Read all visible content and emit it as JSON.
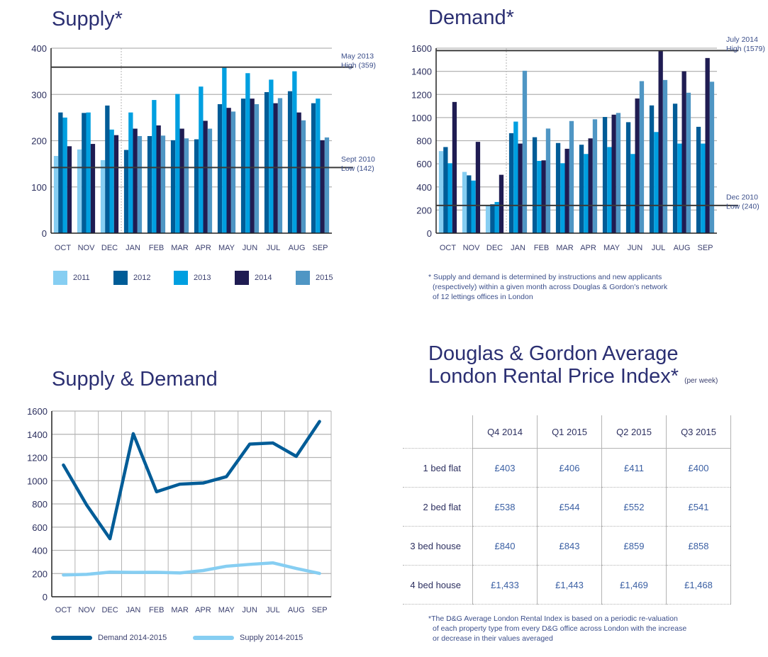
{
  "supply": {
    "title": "Supply*",
    "annotations": {
      "high": [
        "May 2013",
        "High (359)"
      ],
      "low": [
        "Sept 2010",
        "Low (142)"
      ]
    }
  },
  "demand": {
    "title": "Demand*",
    "annotations": {
      "high": [
        "July 2014",
        "High (1579)"
      ],
      "low": [
        "Dec 2010",
        "Low (240)"
      ]
    },
    "footnote": "* Supply and demand is determined by instructions and new applicants (respectively) within a given month across Douglas & Gordon's network of 12 lettings offices in London",
    "footnote_lines": [
      "* Supply and demand is determined by instructions and new applicants",
      "(respectively) within a given month across Douglas & Gordon's network",
      "of 12 lettings offices in London"
    ]
  },
  "supply_demand": {
    "title": "Supply & Demand"
  },
  "rental_index": {
    "title_line1": "Douglas & Gordon Average",
    "title_line2": "London Rental Price Index*",
    "title_suffix": "(per week)",
    "columns": [
      "Q4 2014",
      "Q1 2015",
      "Q2 2015",
      "Q3 2015"
    ],
    "rows": [
      {
        "label": "1 bed flat",
        "values": [
          "£403",
          "£406",
          "£411",
          "£400"
        ]
      },
      {
        "label": "2 bed flat",
        "values": [
          "£538",
          "£544",
          "£552",
          "£541"
        ]
      },
      {
        "label": "3 bed house",
        "values": [
          "£840",
          "£843",
          "£859",
          "£858"
        ]
      },
      {
        "label": "4 bed house",
        "values": [
          "£1,433",
          "£1,443",
          "£1,469",
          "£1,468"
        ]
      }
    ],
    "footnote_lines": [
      "*The D&G Average London Rental Index is based on a periodic re-valuation",
      "of each property type from every D&G office across London with the increase",
      "or decrease in their values averaged"
    ]
  },
  "colors": {
    "2011": "#86cef2",
    "2012": "#005c97",
    "2013": "#009fe0",
    "2014": "#1f1c52",
    "2015": "#4f96c4",
    "demand_line": "#005c97",
    "supply_line": "#86cef2",
    "refline": "#3a3a3a",
    "grid": "#b3b3b3"
  },
  "chart_data": [
    {
      "type": "bar",
      "title": "Supply*",
      "categories": [
        "OCT",
        "NOV",
        "DEC",
        "JAN",
        "FEB",
        "MAR",
        "APR",
        "MAY",
        "JUN",
        "JUL",
        "AUG",
        "SEP"
      ],
      "ylim": [
        0,
        400
      ],
      "yticks": [
        0,
        100,
        200,
        300,
        400
      ],
      "xlabel": "",
      "ylabel": "",
      "grid": true,
      "legend": "bottom",
      "reference_lines": [
        {
          "value": 359,
          "label": "May 2013 High (359)"
        },
        {
          "value": 142,
          "label": "Sept 2010 Low (142)"
        }
      ],
      "series": [
        {
          "name": "2011",
          "values": [
            167,
            181,
            158,
            null,
            null,
            null,
            null,
            null,
            null,
            null,
            null,
            null
          ]
        },
        {
          "name": "2012",
          "values": [
            261,
            260,
            276,
            180,
            210,
            201,
            203,
            279,
            291,
            305,
            307,
            281
          ]
        },
        {
          "name": "2013",
          "values": [
            250,
            261,
            224,
            261,
            288,
            301,
            317,
            359,
            346,
            332,
            350,
            291
          ]
        },
        {
          "name": "2014",
          "values": [
            188,
            193,
            212,
            226,
            233,
            226,
            243,
            271,
            291,
            281,
            261,
            201
          ]
        },
        {
          "name": "2015",
          "values": [
            null,
            null,
            null,
            210,
            211,
            205,
            226,
            263,
            279,
            292,
            244,
            207
          ]
        }
      ]
    },
    {
      "type": "bar",
      "title": "Demand*",
      "categories": [
        "OCT",
        "NOV",
        "DEC",
        "JAN",
        "FEB",
        "MAR",
        "APR",
        "MAY",
        "JUN",
        "JUL",
        "AUG",
        "SEP"
      ],
      "ylim": [
        0,
        1600
      ],
      "yticks": [
        0,
        200,
        400,
        600,
        800,
        1000,
        1200,
        1400,
        1600
      ],
      "xlabel": "",
      "ylabel": "",
      "grid": true,
      "legend": "none",
      "reference_lines": [
        {
          "value": 1579,
          "label": "July 2014 High (1579)"
        },
        {
          "value": 240,
          "label": "Dec 2010 Low (240)"
        }
      ],
      "series": [
        {
          "name": "2011",
          "values": [
            710,
            530,
            240,
            null,
            null,
            null,
            null,
            null,
            null,
            null,
            null,
            null
          ]
        },
        {
          "name": "2012",
          "values": [
            745,
            500,
            250,
            865,
            830,
            780,
            765,
            1005,
            960,
            1105,
            1120,
            920
          ]
        },
        {
          "name": "2013",
          "values": [
            605,
            455,
            270,
            965,
            625,
            605,
            685,
            745,
            685,
            875,
            775,
            775
          ]
        },
        {
          "name": "2014",
          "values": [
            1135,
            790,
            505,
            775,
            630,
            730,
            820,
            1025,
            1165,
            1579,
            1400,
            1515
          ]
        },
        {
          "name": "2015",
          "values": [
            null,
            null,
            null,
            1405,
            905,
            970,
            985,
            1040,
            1315,
            1325,
            1215,
            1310
          ]
        }
      ]
    },
    {
      "type": "line",
      "title": "Supply & Demand",
      "x": [
        "OCT",
        "NOV",
        "DEC",
        "JAN",
        "FEB",
        "MAR",
        "APR",
        "MAY",
        "JUN",
        "JUL",
        "AUG",
        "SEP"
      ],
      "ylim": [
        0,
        1600
      ],
      "yticks": [
        0,
        200,
        400,
        600,
        800,
        1000,
        1200,
        1400,
        1600
      ],
      "xlabel": "",
      "ylabel": "",
      "grid": true,
      "legend": "bottom",
      "series": [
        {
          "name": "Demand 2014-2015",
          "values": [
            1135,
            790,
            500,
            1405,
            905,
            970,
            980,
            1035,
            1315,
            1325,
            1210,
            1510
          ]
        },
        {
          "name": "Supply 2014-2015",
          "values": [
            188,
            193,
            212,
            210,
            211,
            205,
            226,
            263,
            279,
            292,
            244,
            201
          ]
        }
      ]
    }
  ]
}
